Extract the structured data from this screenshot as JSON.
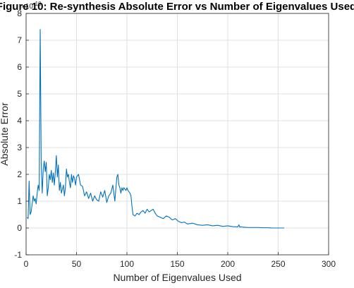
{
  "chart_data": {
    "type": "line",
    "title": "Figure 10: Re-synthesis Absolute Error vs Number of Eigenvalues Used",
    "xlabel": "Number of Eigenvalues Used",
    "ylabel": "Absolute Error",
    "y_exponent_label": "×10",
    "y_exponent_power": "-10",
    "xlim": [
      0,
      300
    ],
    "ylim": [
      -1,
      8
    ],
    "x_ticks": [
      0,
      50,
      100,
      150,
      200,
      250,
      300
    ],
    "y_ticks": [
      -1,
      0,
      1,
      2,
      3,
      4,
      5,
      6,
      7,
      8
    ],
    "grid": true,
    "line_color": "#0072BD",
    "series": [
      {
        "x": [
          1,
          2,
          3,
          4,
          5,
          6,
          7,
          8,
          9,
          10,
          11,
          12,
          13,
          14,
          15,
          16,
          17,
          18,
          19,
          20,
          21,
          22,
          23,
          24,
          25,
          26,
          27,
          28,
          29,
          30,
          31,
          32,
          33,
          34,
          35,
          36,
          37,
          38,
          39,
          40,
          41,
          42,
          43,
          44,
          45,
          46,
          47,
          48,
          49,
          50,
          52,
          54,
          56,
          58,
          60,
          62,
          64,
          66,
          68,
          70,
          72,
          74,
          76,
          78,
          80,
          82,
          84,
          86,
          88,
          90,
          91,
          92,
          93,
          94,
          95,
          96,
          97,
          98,
          99,
          100,
          101,
          102,
          103,
          104,
          105,
          106,
          108,
          110,
          112,
          114,
          116,
          118,
          120,
          122,
          124,
          126,
          128,
          130,
          133,
          136,
          139,
          142,
          145,
          148,
          151,
          154,
          157,
          160,
          165,
          170,
          175,
          180,
          185,
          190,
          195,
          200,
          205,
          210,
          211,
          212,
          213,
          214,
          215,
          220,
          225,
          230,
          235,
          240,
          245,
          250,
          256
        ],
        "y": [
          0.4,
          0.35,
          1.75,
          0.5,
          0.6,
          0.9,
          1.2,
          1.0,
          1.1,
          0.9,
          1.3,
          1.6,
          1.4,
          7.4,
          2.4,
          1.3,
          2.2,
          2.5,
          2.1,
          2.45,
          1.2,
          1.5,
          2.0,
          1.8,
          2.15,
          1.7,
          2.05,
          1.6,
          2.1,
          2.7,
          1.9,
          2.35,
          1.4,
          1.7,
          1.3,
          1.45,
          1.6,
          1.2,
          1.5,
          2.2,
          1.9,
          2.0,
          1.7,
          1.5,
          2.0,
          1.7,
          1.95,
          1.85,
          1.6,
          1.9,
          2.0,
          1.6,
          1.55,
          1.2,
          1.35,
          1.1,
          1.3,
          1.0,
          1.2,
          1.05,
          1.0,
          1.35,
          1.15,
          1.4,
          0.95,
          1.2,
          1.3,
          1.6,
          1.0,
          1.9,
          2.0,
          1.6,
          1.5,
          1.3,
          1.5,
          1.4,
          1.5,
          1.45,
          1.4,
          1.5,
          1.4,
          1.35,
          1.3,
          1.2,
          0.8,
          0.5,
          0.45,
          0.55,
          0.5,
          0.6,
          0.65,
          0.55,
          0.7,
          0.6,
          0.65,
          0.7,
          0.55,
          0.45,
          0.4,
          0.35,
          0.45,
          0.4,
          0.3,
          0.35,
          0.25,
          0.2,
          0.22,
          0.15,
          0.18,
          0.12,
          0.1,
          0.12,
          0.08,
          0.1,
          0.06,
          0.08,
          0.05,
          0.04,
          0.12,
          0.03,
          0.05,
          0.04,
          0.03,
          0.02,
          0.02,
          0.02,
          0.01,
          0.01,
          0.0,
          0.0,
          0.0
        ]
      }
    ]
  }
}
